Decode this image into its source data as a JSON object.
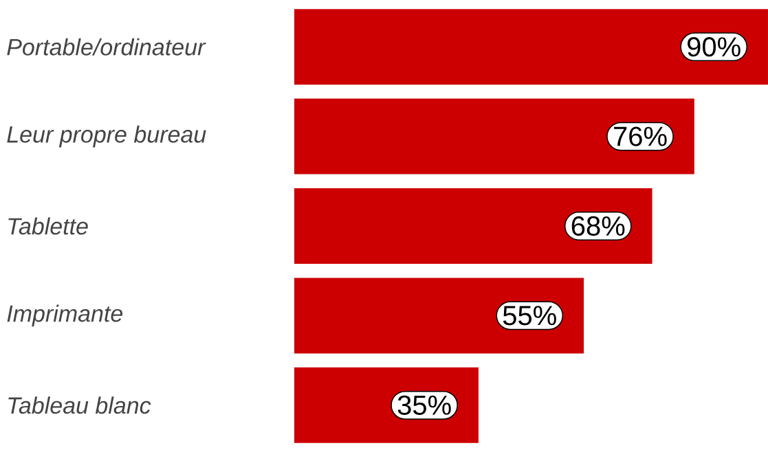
{
  "chart_data": {
    "type": "bar",
    "orientation": "horizontal",
    "categories": [
      "Portable/ordinateur",
      "Leur propre bureau",
      "Tablette",
      "Imprimante",
      "Tableau blanc"
    ],
    "values": [
      90,
      76,
      68,
      55,
      35
    ],
    "value_labels": [
      "90%",
      "76%",
      "68%",
      "55%",
      "35%"
    ],
    "color": "#cc0000"
  }
}
